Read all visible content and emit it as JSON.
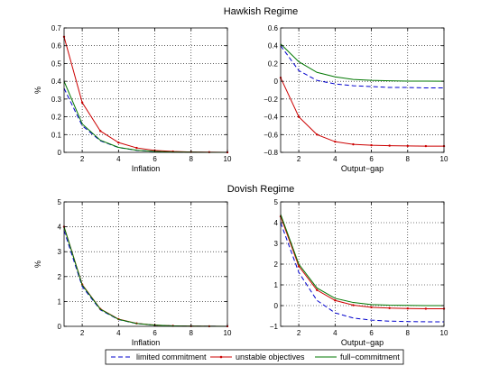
{
  "figure": {
    "hawkish_title": "Hawkish Regime",
    "dovish_title": "Dovish Regime",
    "legend": [
      {
        "label": "limited commitment",
        "color": "#0000cc",
        "dash": true,
        "marker": false
      },
      {
        "label": "unstable objectives",
        "color": "#cc0000",
        "dash": false,
        "marker": true
      },
      {
        "label": "full−commitment",
        "color": "#007700",
        "dash": false,
        "marker": false
      }
    ]
  },
  "chart_data": [
    {
      "type": "line",
      "regime": "Hawkish Regime",
      "xlabel": "Inflation",
      "ylabel": "%",
      "xlim": [
        1,
        10
      ],
      "ylim": [
        0,
        0.7
      ],
      "xticks": [
        2,
        4,
        6,
        8,
        10
      ],
      "yticks": [
        0,
        0.1,
        0.2,
        0.3,
        0.4,
        0.5,
        0.6,
        0.7
      ],
      "grid": true,
      "x": [
        1,
        2,
        3,
        4,
        5,
        6,
        7,
        8,
        9,
        10
      ],
      "series": [
        {
          "name": "limited commitment",
          "values": [
            0.36,
            0.15,
            0.065,
            0.027,
            0.011,
            0.005,
            0.002,
            0.001,
            0.0,
            0.0
          ]
        },
        {
          "name": "unstable objectives",
          "values": [
            0.65,
            0.28,
            0.12,
            0.055,
            0.025,
            0.011,
            0.005,
            0.002,
            0.001,
            0.0
          ]
        },
        {
          "name": "full−commitment",
          "values": [
            0.4,
            0.16,
            0.068,
            0.028,
            0.012,
            0.005,
            0.002,
            0.001,
            0.0,
            0.0
          ]
        }
      ]
    },
    {
      "type": "line",
      "regime": "Hawkish Regime",
      "xlabel": "Output−gap",
      "ylabel": "",
      "xlim": [
        1,
        10
      ],
      "ylim": [
        -0.8,
        0.6
      ],
      "xticks": [
        2,
        4,
        6,
        8,
        10
      ],
      "yticks": [
        -0.8,
        -0.6,
        -0.4,
        -0.2,
        0,
        0.2,
        0.4,
        0.6
      ],
      "grid": true,
      "x": [
        1,
        2,
        3,
        4,
        5,
        6,
        7,
        8,
        9,
        10
      ],
      "series": [
        {
          "name": "limited commitment",
          "values": [
            0.4,
            0.12,
            0.01,
            -0.03,
            -0.05,
            -0.06,
            -0.07,
            -0.07,
            -0.075,
            -0.075
          ]
        },
        {
          "name": "unstable objectives",
          "values": [
            0.04,
            -0.4,
            -0.6,
            -0.68,
            -0.71,
            -0.72,
            -0.725,
            -0.728,
            -0.73,
            -0.73
          ]
        },
        {
          "name": "full−commitment",
          "values": [
            0.42,
            0.22,
            0.1,
            0.05,
            0.02,
            0.01,
            0.005,
            0.002,
            0.001,
            0.0
          ]
        }
      ]
    },
    {
      "type": "line",
      "regime": "Dovish Regime",
      "xlabel": "Inflation",
      "ylabel": "%",
      "xlim": [
        1,
        10
      ],
      "ylim": [
        0,
        5
      ],
      "xticks": [
        2,
        4,
        6,
        8,
        10
      ],
      "yticks": [
        0,
        1,
        2,
        3,
        4,
        5
      ],
      "grid": true,
      "x": [
        1,
        2,
        3,
        4,
        5,
        6,
        7,
        8,
        9,
        10
      ],
      "series": [
        {
          "name": "limited commitment",
          "values": [
            3.85,
            1.6,
            0.66,
            0.27,
            0.11,
            0.045,
            0.018,
            0.007,
            0.003,
            0.001
          ]
        },
        {
          "name": "unstable objectives",
          "values": [
            4.0,
            1.68,
            0.7,
            0.29,
            0.12,
            0.05,
            0.02,
            0.008,
            0.003,
            0.001
          ]
        },
        {
          "name": "full−commitment",
          "values": [
            4.0,
            1.66,
            0.69,
            0.28,
            0.115,
            0.048,
            0.02,
            0.008,
            0.003,
            0.001
          ]
        }
      ]
    },
    {
      "type": "line",
      "regime": "Dovish Regime",
      "xlabel": "Output−gap",
      "ylabel": "",
      "xlim": [
        1,
        10
      ],
      "ylim": [
        -1,
        5
      ],
      "xticks": [
        2,
        4,
        6,
        8,
        10
      ],
      "yticks": [
        -1,
        0,
        1,
        2,
        3,
        4,
        5
      ],
      "grid": true,
      "x": [
        1,
        2,
        3,
        4,
        5,
        6,
        7,
        8,
        9,
        10
      ],
      "series": [
        {
          "name": "limited commitment",
          "values": [
            4.0,
            1.6,
            0.25,
            -0.35,
            -0.6,
            -0.7,
            -0.75,
            -0.77,
            -0.78,
            -0.78
          ]
        },
        {
          "name": "unstable objectives",
          "values": [
            4.3,
            1.9,
            0.75,
            0.25,
            0.02,
            -0.08,
            -0.12,
            -0.14,
            -0.15,
            -0.15
          ]
        },
        {
          "name": "full−commitment",
          "values": [
            4.4,
            2.0,
            0.85,
            0.35,
            0.15,
            0.05,
            0.02,
            0.01,
            0.0,
            0.0
          ]
        }
      ]
    }
  ]
}
